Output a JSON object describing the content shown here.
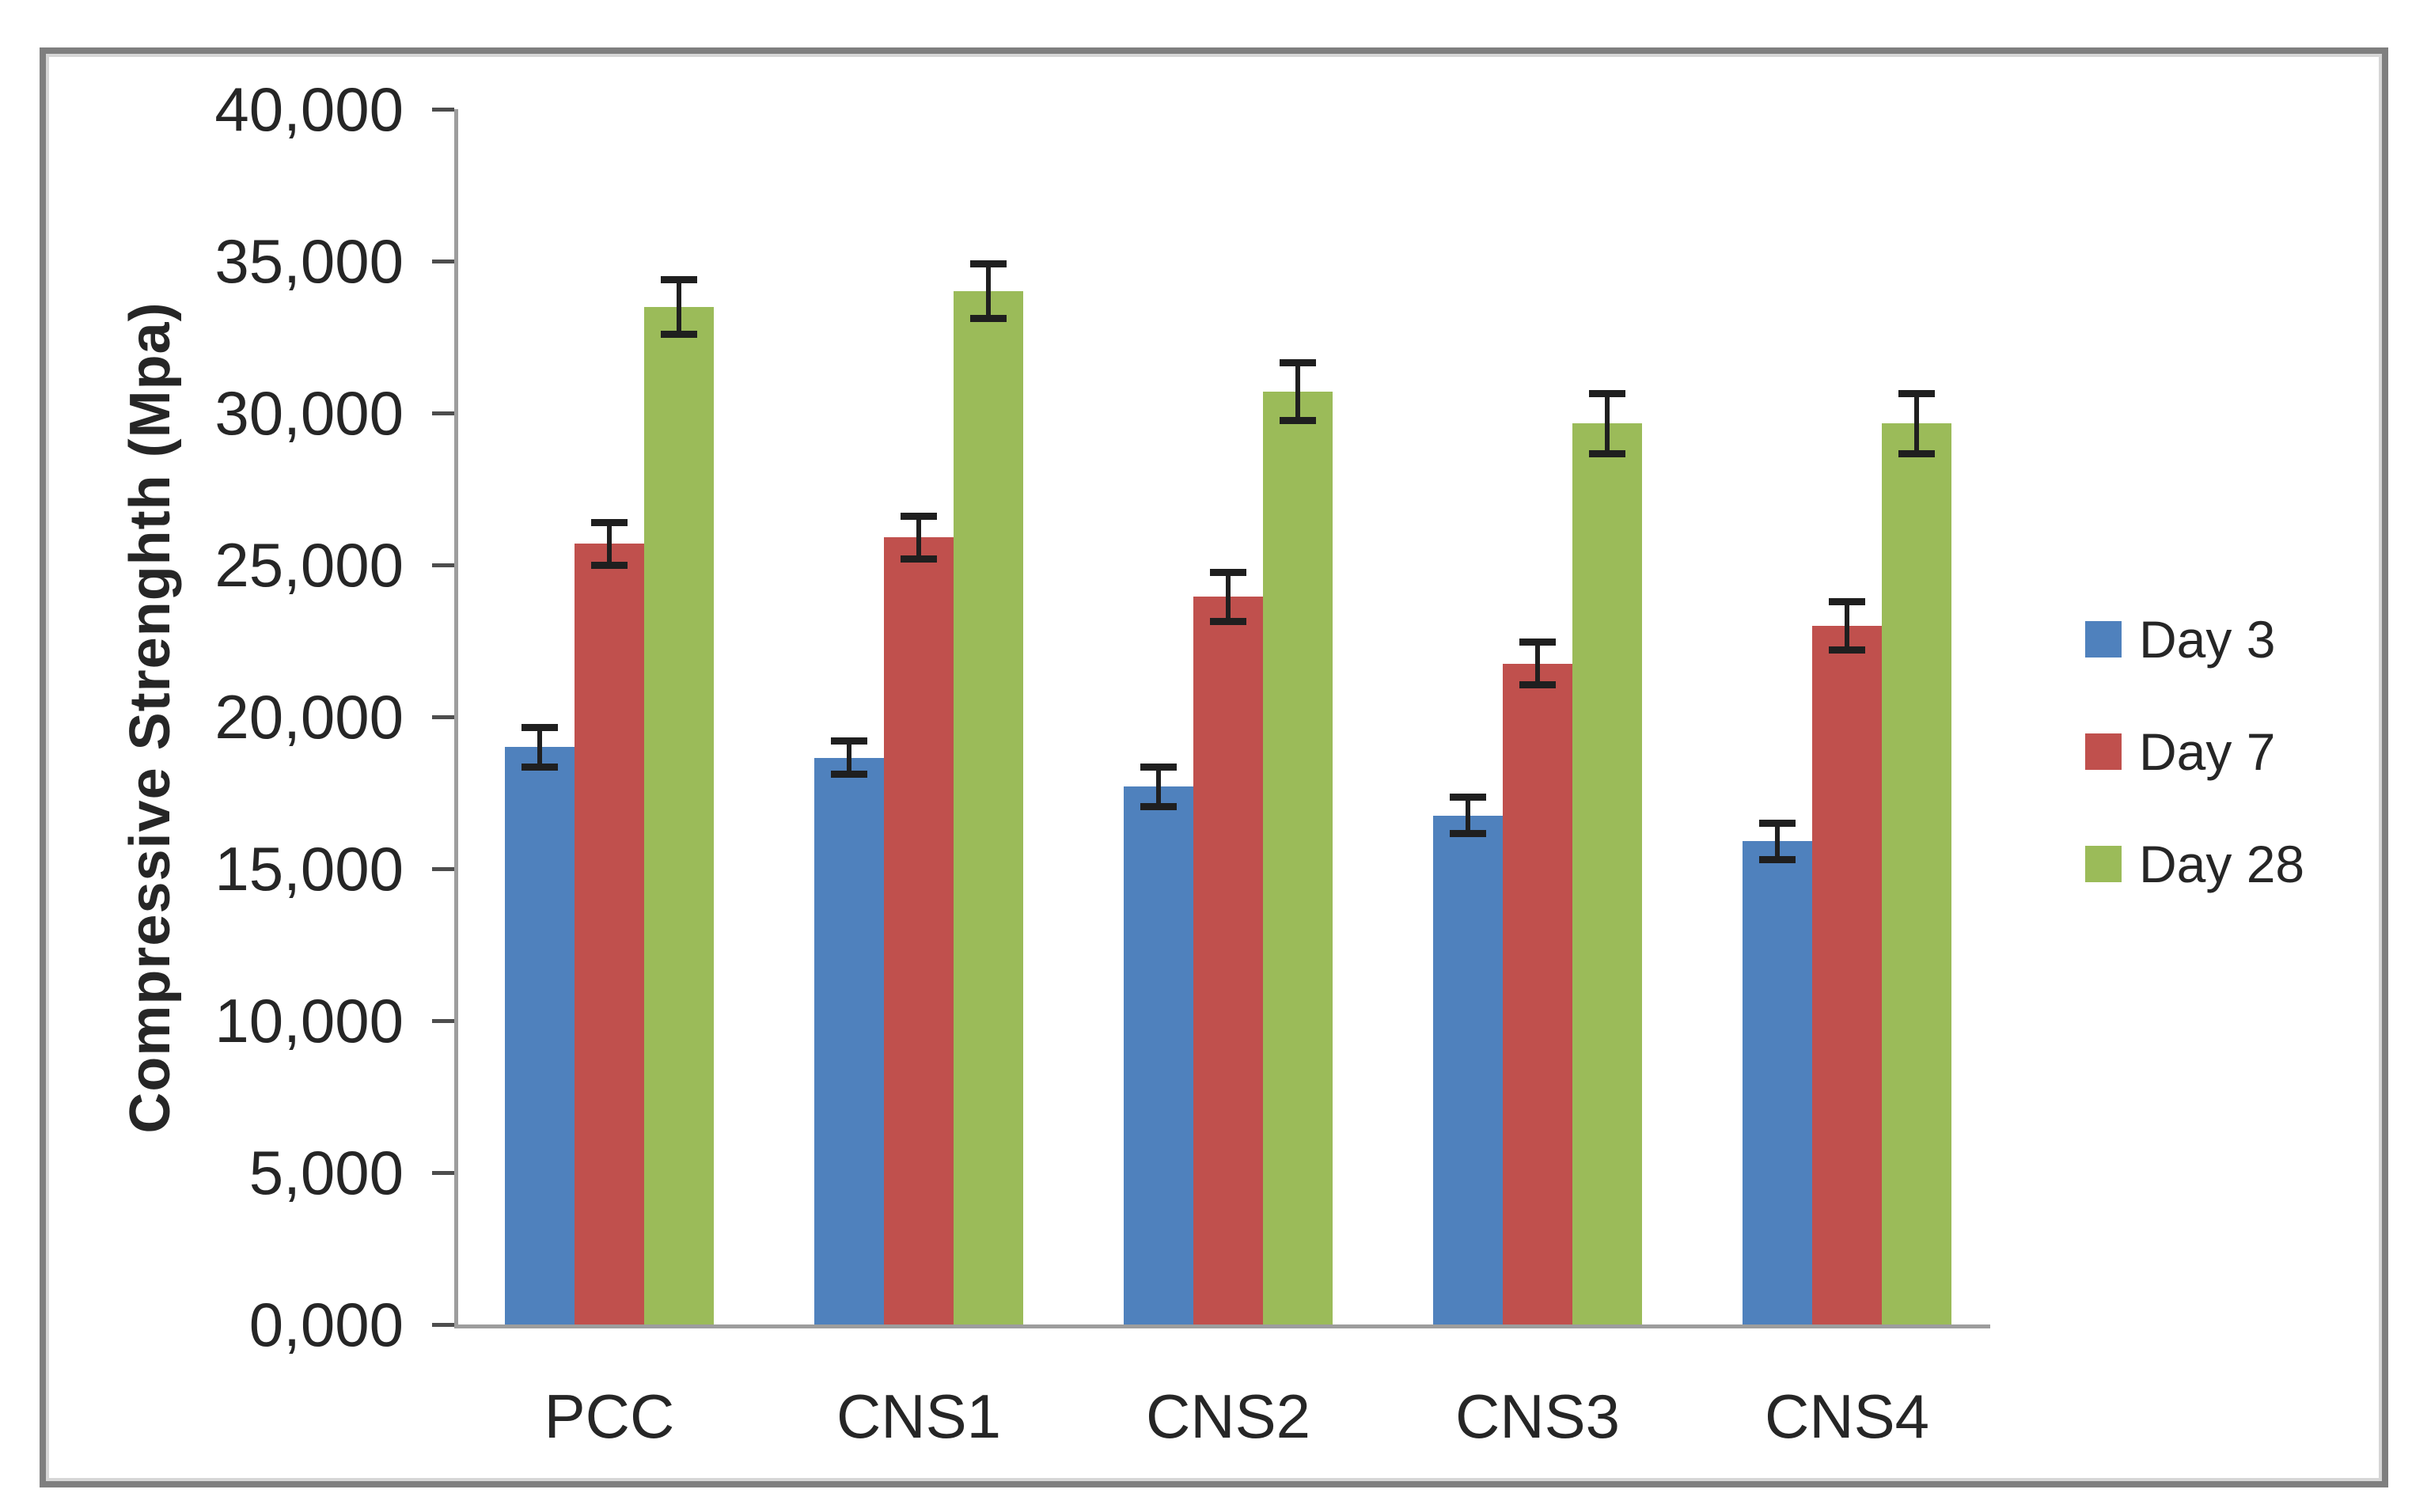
{
  "chart_data": {
    "type": "bar",
    "title": "",
    "xlabel": "",
    "ylabel": "Compressive Strenghth (Mpa)",
    "categories": [
      "PCC",
      "CNS1",
      "CNS2",
      "CNS3",
      "CNS4"
    ],
    "series": [
      {
        "name": "Day 3",
        "color": "#4F81BD",
        "values": [
          19000,
          18650,
          17700,
          16750,
          15900
        ],
        "error_bars": [
          650,
          550,
          650,
          600,
          600
        ]
      },
      {
        "name": "Day 7",
        "color": "#C0504D",
        "values": [
          25700,
          25900,
          23950,
          21750,
          23000
        ],
        "error_bars": [
          700,
          700,
          800,
          700,
          800
        ]
      },
      {
        "name": "Day 28",
        "color": "#9BBB59",
        "values": [
          33500,
          34000,
          30700,
          29650,
          29650
        ],
        "error_bars": [
          900,
          900,
          950,
          1000,
          1000
        ]
      }
    ],
    "ylim": [
      0,
      40000
    ],
    "ytick_interval": 5000,
    "ytick_labels": [
      "40,000",
      "35,000",
      "30,000",
      "25,000",
      "20,000",
      "15,000",
      "10,000",
      "5,000",
      "0,000"
    ],
    "grid": false,
    "error_bars_shown": true,
    "legend_position": "right"
  },
  "colors": {
    "background": "#FFFFFF",
    "frame_border": "#7F7F7F",
    "axis_line": "#9D9D9D",
    "tick_mark": "#4D4D4D",
    "text": "#262626",
    "error_bar": "#1F1F1F"
  }
}
